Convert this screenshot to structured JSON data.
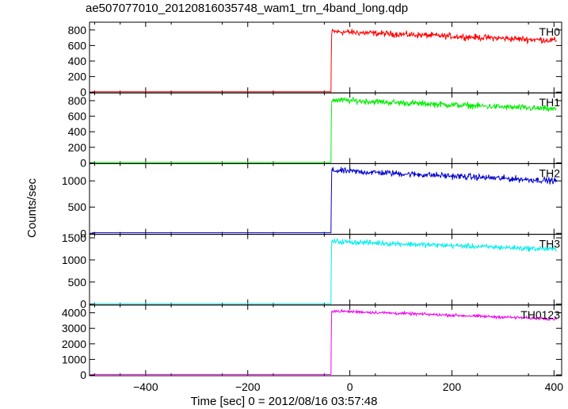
{
  "title": "ae507077010_20120816035748_wam1_trn_4band_long.qdp",
  "chart_data": {
    "type": "line",
    "title": "ae507077010_20120816035748_wam1_trn_4band_long.qdp",
    "xlabel": "Time [sec] 0 = 2012/08/16 03:57:48",
    "ylabel": "Counts/sec",
    "xlim": [
      -510,
      415
    ],
    "x_ticks": [
      -400,
      -200,
      0,
      200,
      400
    ],
    "x_tick_labels": [
      "−400",
      "−200",
      "0",
      "200",
      "400"
    ],
    "panels": [
      {
        "name": "TH0",
        "color": "#ff0000",
        "ylim": [
          -10,
          900
        ],
        "y_ticks": [
          0,
          200,
          400,
          600,
          800
        ],
        "baseline": 5,
        "onset_x": -37,
        "onset_level": 380,
        "peak": 780,
        "end": 665,
        "noise": 30
      },
      {
        "name": "TH1",
        "color": "#00ee00",
        "ylim": [
          -10,
          900
        ],
        "y_ticks": [
          0,
          200,
          400,
          600,
          800
        ],
        "baseline": 5,
        "onset_x": -37,
        "onset_level": 500,
        "peak": 810,
        "end": 690,
        "noise": 30
      },
      {
        "name": "TH2",
        "color": "#0000cc",
        "ylim": [
          -20,
          1330
        ],
        "y_ticks": [
          0,
          500,
          1000
        ],
        "baseline": 10,
        "onset_x": -37,
        "onset_level": 500,
        "peak": 1200,
        "end": 1000,
        "noise": 45
      },
      {
        "name": "TH3",
        "color": "#00eeee",
        "ylim": [
          -20,
          1580
        ],
        "y_ticks": [
          0,
          500,
          1000,
          1500
        ],
        "baseline": 10,
        "onset_x": -37,
        "onset_level": 900,
        "peak": 1420,
        "end": 1240,
        "noise": 45
      },
      {
        "name": "TH0123",
        "color": "#ee00ee",
        "ylim": [
          -50,
          4500
        ],
        "y_ticks": [
          0,
          1000,
          2000,
          3000,
          4000
        ],
        "baseline": 30,
        "onset_x": -37,
        "onset_level": 2200,
        "peak": 4120,
        "end": 3600,
        "noise": 70
      }
    ]
  }
}
